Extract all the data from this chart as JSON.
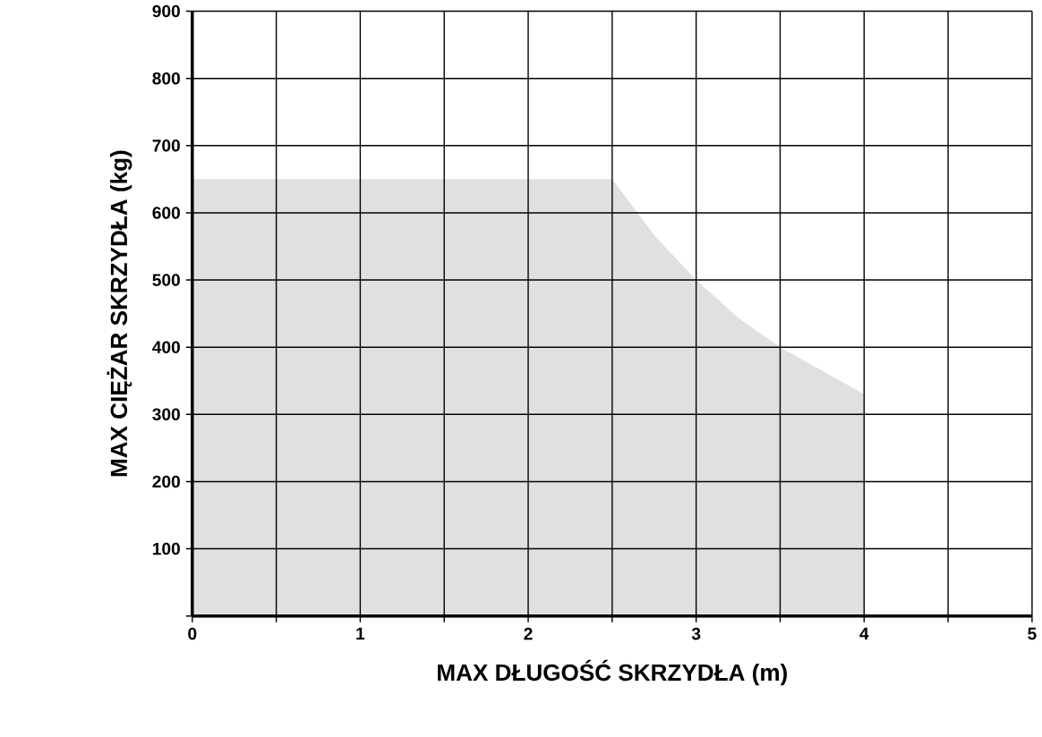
{
  "chart_data": {
    "type": "area",
    "xlabel": "MAX DŁUGOŚĆ SKRZYDŁA (m)",
    "ylabel": "MAX CIĘŻAR SKRZYDŁA (kg)",
    "x": [
      0,
      2.5,
      2.75,
      3,
      3.25,
      3.5,
      3.75,
      4,
      4
    ],
    "series": [
      {
        "color": "#e0e0e0",
        "values": [
          650,
          650,
          567,
          500,
          444,
          400,
          365,
          330,
          0
        ]
      }
    ],
    "xlim": [
      0,
      5
    ],
    "ylim": [
      0,
      900
    ],
    "xticks": [
      0,
      {
        "value": 0.5,
        "label": null
      },
      1,
      {
        "value": 1.5,
        "label": null
      },
      2,
      {
        "value": 2.5,
        "label": null
      },
      3,
      {
        "value": 3.5,
        "label": null
      },
      4,
      {
        "value": 4.5,
        "label": null
      },
      5
    ],
    "yticks": [
      {
        "value": 0,
        "label": null
      },
      100,
      200,
      300,
      400,
      500,
      600,
      700,
      800,
      900
    ],
    "grid": true
  }
}
